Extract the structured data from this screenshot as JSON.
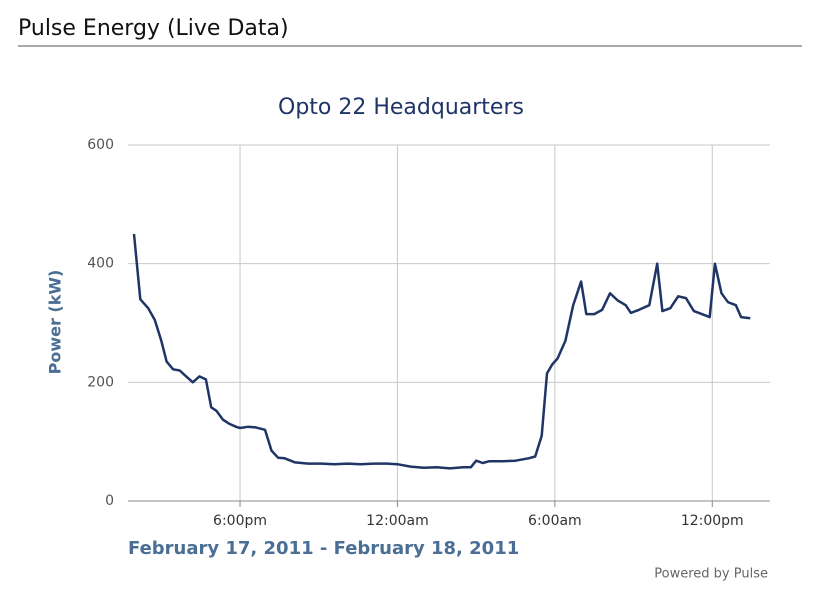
{
  "header": "Pulse Energy (Live Data)",
  "footer": "Powered by Pulse",
  "chart_data": {
    "type": "line",
    "title": "Opto 22 Headquarters",
    "y_label": "Power (kW)",
    "x_label": "February 17, 2011 - February 18, 2011",
    "x": [
      13.96,
      14.2,
      14.5,
      14.75,
      15.0,
      15.2,
      15.45,
      15.7,
      15.95,
      16.2,
      16.45,
      16.7,
      16.9,
      17.1,
      17.35,
      17.6,
      17.85,
      18.0,
      18.3,
      18.6,
      18.95,
      19.2,
      19.45,
      19.7,
      20.1,
      20.6,
      21.1,
      21.6,
      22.1,
      22.6,
      23.1,
      23.6,
      24.0,
      24.5,
      25.0,
      25.5,
      26.0,
      26.5,
      26.8,
      27.0,
      27.25,
      27.5,
      28.0,
      28.5,
      29.0,
      29.25,
      29.5,
      29.7,
      29.9,
      30.1,
      30.4,
      30.7,
      31.0,
      31.2,
      31.5,
      31.8,
      32.1,
      32.4,
      32.7,
      32.9,
      33.2,
      33.6,
      33.9,
      34.1,
      34.4,
      34.7,
      35.0,
      35.3,
      35.6,
      35.9,
      36.1,
      36.35,
      36.6,
      36.9,
      37.1,
      37.45
    ],
    "series": [
      {
        "name": "Power",
        "color": "#1f3566",
        "values": [
          450,
          340,
          325,
          305,
          270,
          235,
          222,
          220,
          210,
          200,
          210,
          205,
          158,
          152,
          137,
          130,
          125,
          123,
          125,
          124,
          120,
          85,
          73,
          72,
          65,
          63,
          63,
          62,
          63,
          62,
          63,
          63,
          62,
          58,
          56,
          57,
          55,
          57,
          57,
          68,
          64,
          67,
          67,
          68,
          72,
          75,
          110,
          215,
          230,
          240,
          270,
          330,
          370,
          315,
          315,
          322,
          350,
          338,
          330,
          317,
          322,
          330,
          400,
          320,
          325,
          345,
          342,
          320,
          315,
          310,
          400,
          350,
          335,
          330,
          310,
          308
        ]
      }
    ],
    "xlim": [
      13.73,
      38.2
    ],
    "xticks": [
      {
        "value": 18,
        "label": "6:00pm"
      },
      {
        "value": 24,
        "label": "12:00am"
      },
      {
        "value": 30,
        "label": "6:00am"
      },
      {
        "value": 36,
        "label": "12:00pm"
      }
    ],
    "ylim": [
      0,
      600
    ],
    "yticks": [
      0,
      200,
      400,
      600
    ],
    "grid": true
  }
}
